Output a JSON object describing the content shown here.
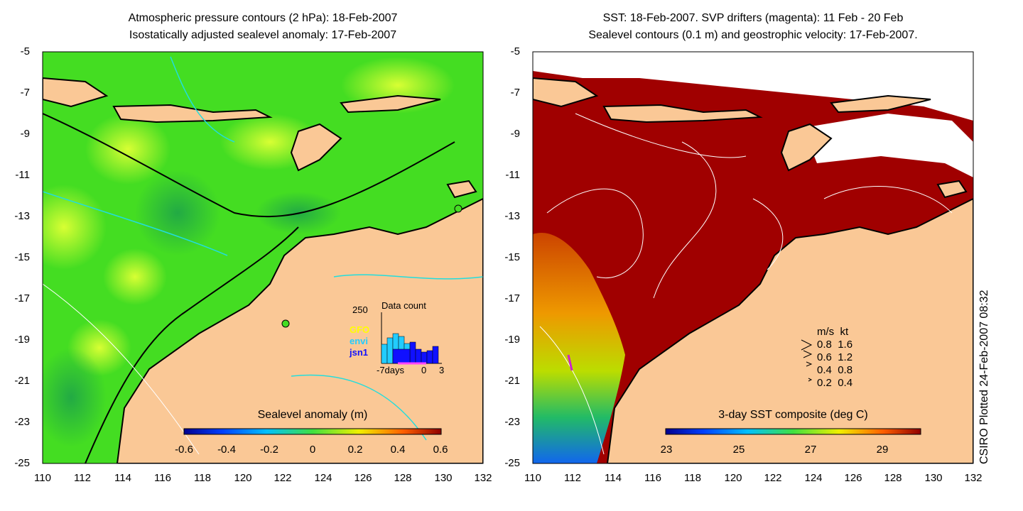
{
  "left_panel": {
    "title_line1": "Atmospheric pressure contours (2 hPa): 18-Feb-2007",
    "title_line2": "Isostatically adjusted sealevel anomaly: 17-Feb-2007",
    "colorbar_title": "Sealevel anomaly (m)",
    "colorbar_ticks": [
      "-0.6",
      "-0.4",
      "-0.2",
      "0",
      "0.2",
      "0.4",
      "0.6"
    ],
    "inset": {
      "title": "Data count",
      "ymax_label": "250",
      "x_labels": [
        "-7days",
        "0",
        "3"
      ],
      "legend": [
        {
          "label": "GFO",
          "color": "#ffff00"
        },
        {
          "label": "envi",
          "color": "#22ccff"
        },
        {
          "label": "jsn1",
          "color": "#1010ff"
        }
      ]
    }
  },
  "right_panel": {
    "title_line1": "SST: 18-Feb-2007. SVP drifters (magenta): 11 Feb - 20 Feb",
    "title_line2": "Sealevel contours (0.1 m) and geostrophic velocity: 17-Feb-2007.",
    "colorbar_title": "3-day SST composite (deg C)",
    "colorbar_ticks": [
      "23",
      "25",
      "27",
      "29"
    ],
    "velocity_legend": {
      "header_ms": "m/s",
      "header_kt": "kt",
      "rows": [
        {
          "ms": "0.8",
          "kt": "1.6"
        },
        {
          "ms": "0.6",
          "kt": "1.2"
        },
        {
          "ms": "0.4",
          "kt": "0.8"
        },
        {
          "ms": "0.2",
          "kt": "0.4"
        }
      ]
    }
  },
  "axes": {
    "x_ticks": [
      "110",
      "112",
      "114",
      "116",
      "118",
      "120",
      "122",
      "124",
      "126",
      "128",
      "130",
      "132"
    ],
    "y_ticks": [
      "-5",
      "-7",
      "-9",
      "-11",
      "-13",
      "-15",
      "-17",
      "-19",
      "-21",
      "-23",
      "-25"
    ]
  },
  "credit": "CSIRO Plotted 24-Feb-2007 08:32",
  "colors": {
    "land": "#fac896",
    "ocean_left": "#44dd22",
    "ocean_right": "#a00000"
  }
}
